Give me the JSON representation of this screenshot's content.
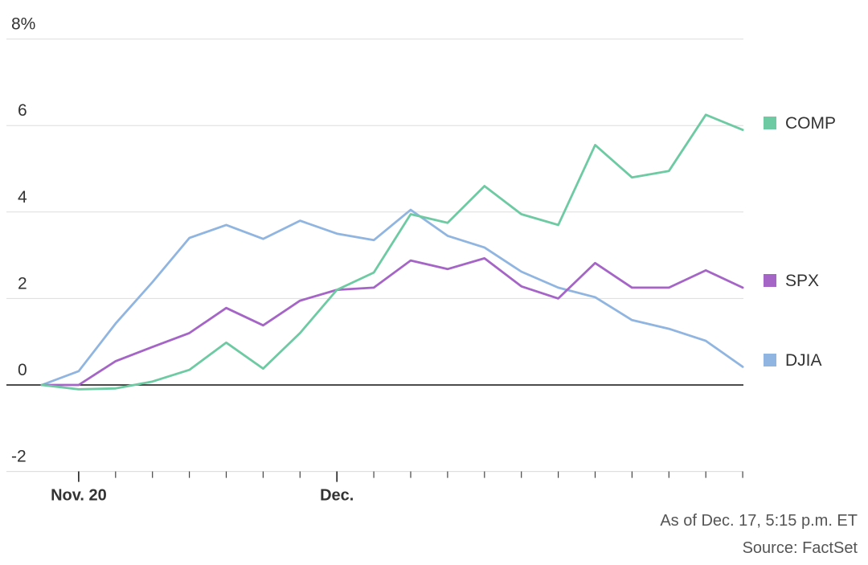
{
  "chart_data": {
    "type": "line",
    "title": "",
    "xlabel": "",
    "ylabel": "",
    "y_unit_label": "8%",
    "ylim": [
      -2,
      8
    ],
    "yticks": [
      -2,
      0,
      2,
      4,
      6,
      8
    ],
    "ytick_labels": [
      "-2",
      "0",
      "2",
      "4",
      "6",
      "8%"
    ],
    "x_tick_labels": [
      {
        "index": 1,
        "label": "Nov. 20"
      },
      {
        "index": 8,
        "label": "Dec."
      }
    ],
    "n_points": 20,
    "grid": true,
    "legend_position": "right",
    "series": [
      {
        "name": "COMP",
        "color": "#6dcaa2",
        "values": [
          0,
          -0.1,
          -0.08,
          0.08,
          0.35,
          0.98,
          0.38,
          1.2,
          2.2,
          2.6,
          3.95,
          3.75,
          4.6,
          3.95,
          3.7,
          5.55,
          4.8,
          4.95,
          6.25,
          5.9
        ]
      },
      {
        "name": "SPX",
        "color": "#a565c6",
        "values": [
          0,
          0,
          0.55,
          0.88,
          1.2,
          1.78,
          1.38,
          1.95,
          2.2,
          2.25,
          2.88,
          2.68,
          2.93,
          2.28,
          2.0,
          2.82,
          2.25,
          2.25,
          2.65,
          2.25
        ]
      },
      {
        "name": "DJIA",
        "color": "#8fb5e0",
        "values": [
          0,
          0.32,
          1.42,
          2.38,
          3.4,
          3.7,
          3.38,
          3.8,
          3.5,
          3.35,
          4.05,
          3.45,
          3.18,
          2.62,
          2.25,
          2.03,
          1.5,
          1.3,
          1.02,
          0.42
        ]
      }
    ]
  },
  "footer": {
    "as_of": "As of Dec. 17, 5:15 p.m. ET",
    "source": "Source: FactSet"
  }
}
